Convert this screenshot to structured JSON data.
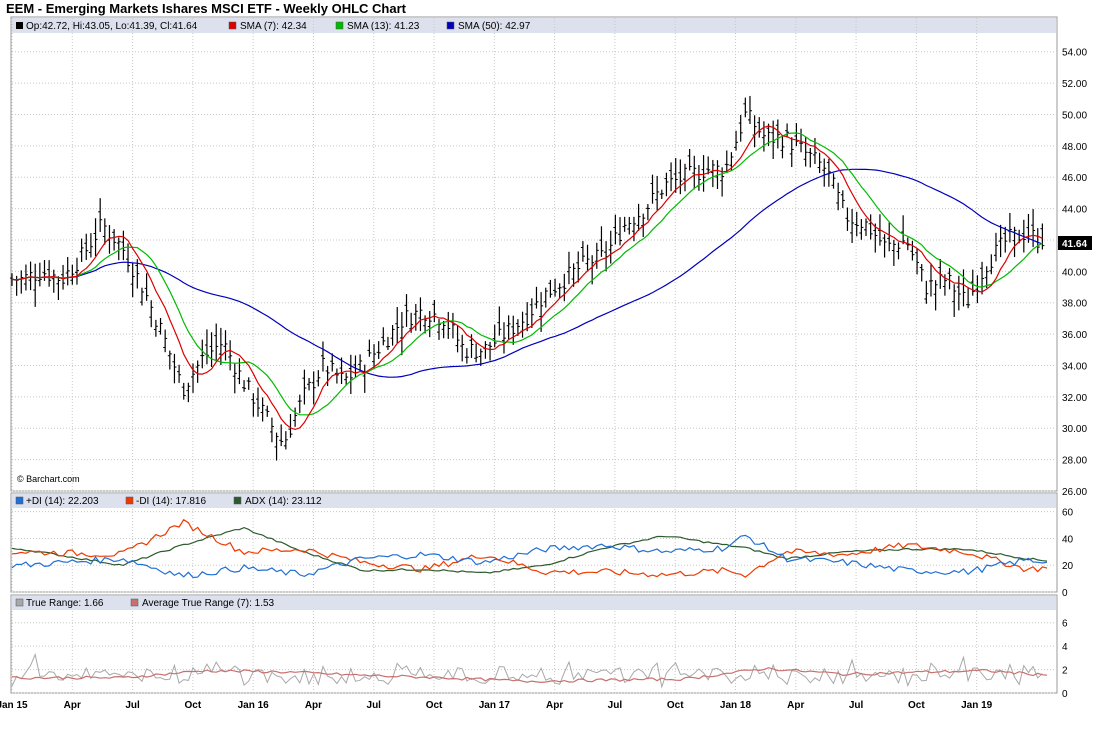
{
  "title": "EEM - Emerging Markets Ishares MSCI ETF - Weekly OHLC Chart",
  "credit": "© Barchart.com",
  "colors": {
    "sma7": "#dd0000",
    "sma13": "#00bb00",
    "sma50": "#0000bb",
    "plus_di": "#1f6fd6",
    "minus_di": "#ee3a00",
    "adx": "#2d5a2d",
    "true_range": "#a8a8a8",
    "atr": "#c87070",
    "panel_border": "#9a9a9a",
    "legend_bg": "#dde1ee"
  },
  "panels": {
    "price": {
      "legend": [
        {
          "label": "Op:42.72, Hi:43.05, Lo:41.39, Cl:41.64",
          "color": "#000000"
        },
        {
          "label": "SMA (7): 42.34",
          "color": "#dd0000"
        },
        {
          "label": "SMA (13): 41.23",
          "color": "#00bb00"
        },
        {
          "label": "SMA (50): 42.97",
          "color": "#0000bb"
        }
      ],
      "y_ticks": [
        "26.00",
        "28.00",
        "30.00",
        "32.00",
        "34.00",
        "36.00",
        "38.00",
        "40.00",
        "42.00",
        "44.00",
        "46.00",
        "48.00",
        "50.00",
        "52.00",
        "54.00"
      ],
      "last_value": "41.64"
    },
    "dmi": {
      "legend": [
        {
          "label": "+DI (14): 22.203",
          "color": "#1f6fd6"
        },
        {
          "label": "-DI (14): 17.816",
          "color": "#ee3a00"
        },
        {
          "label": "ADX (14): 23.112",
          "color": "#2d5a2d"
        }
      ],
      "y_ticks": [
        "0",
        "20",
        "40",
        "60"
      ]
    },
    "atr": {
      "legend": [
        {
          "label": "True Range: 1.66",
          "color": "#a8a8a8"
        },
        {
          "label": "Average True Range (7): 1.53",
          "color": "#c87070"
        }
      ],
      "y_ticks": [
        "0",
        "2",
        "4",
        "6"
      ]
    }
  },
  "x_ticks": [
    "Jan 15",
    "Apr",
    "Jul",
    "Oct",
    "Jan 16",
    "Apr",
    "Jul",
    "Oct",
    "Jan 17",
    "Apr",
    "Jul",
    "Oct",
    "Jan 18",
    "Apr",
    "Jul",
    "Oct",
    "Jan 19"
  ],
  "chart_data": {
    "type": "ohlc",
    "interval": "weekly",
    "x": {
      "start": "2015-01",
      "end": "2019-04",
      "tick_labels": [
        "Jan 15",
        "Apr",
        "Jul",
        "Oct",
        "Jan 16",
        "Apr",
        "Jul",
        "Oct",
        "Jan 17",
        "Apr",
        "Jul",
        "Oct",
        "Jan 18",
        "Apr",
        "Jul",
        "Oct",
        "Jan 19"
      ]
    },
    "price": {
      "ylim": [
        26,
        55
      ],
      "close_path": [
        [
          "2015-01",
          39.5
        ],
        [
          "2015-02",
          40.0
        ],
        [
          "2015-03",
          39.5
        ],
        [
          "2015-04",
          41.0
        ],
        [
          "2015-05",
          43.0
        ],
        [
          "2015-06",
          41.5
        ],
        [
          "2015-07",
          39.0
        ],
        [
          "2015-08",
          36.0
        ],
        [
          "2015-09",
          32.5
        ],
        [
          "2015-10",
          34.5
        ],
        [
          "2015-11",
          35.5
        ],
        [
          "2015-12",
          33.0
        ],
        [
          "2016-01",
          31.0
        ],
        [
          "2016-02",
          29.0
        ],
        [
          "2016-03",
          32.0
        ],
        [
          "2016-04",
          34.0
        ],
        [
          "2016-05",
          33.0
        ],
        [
          "2016-06",
          34.0
        ],
        [
          "2016-07",
          35.5
        ],
        [
          "2016-08",
          37.0
        ],
        [
          "2016-09",
          37.5
        ],
        [
          "2016-10",
          37.0
        ],
        [
          "2016-11",
          35.0
        ],
        [
          "2016-12",
          35.0
        ],
        [
          "2017-01",
          36.0
        ],
        [
          "2017-02",
          37.0
        ],
        [
          "2017-03",
          38.5
        ],
        [
          "2017-04",
          39.5
        ],
        [
          "2017-05",
          40.5
        ],
        [
          "2017-06",
          41.0
        ],
        [
          "2017-07",
          43.0
        ],
        [
          "2017-08",
          44.0
        ],
        [
          "2017-09",
          45.5
        ],
        [
          "2017-10",
          46.0
        ],
        [
          "2017-11",
          46.5
        ],
        [
          "2017-12",
          46.5
        ],
        [
          "2018-01",
          50.0
        ],
        [
          "2018-02",
          48.5
        ],
        [
          "2018-03",
          48.5
        ],
        [
          "2018-04",
          47.5
        ],
        [
          "2018-05",
          46.5
        ],
        [
          "2018-06",
          43.5
        ],
        [
          "2018-07",
          43.0
        ],
        [
          "2018-08",
          41.5
        ],
        [
          "2018-09",
          42.0
        ],
        [
          "2018-10",
          39.0
        ],
        [
          "2018-11",
          39.5
        ],
        [
          "2018-12",
          38.0
        ],
        [
          "2019-01",
          40.5
        ],
        [
          "2019-02",
          42.0
        ],
        [
          "2019-03",
          42.5
        ],
        [
          "2019-04",
          41.64
        ]
      ],
      "last": {
        "open": 42.72,
        "high": 43.05,
        "low": 41.39,
        "close": 41.64
      },
      "sma7_last": 42.34,
      "sma13_last": 41.23,
      "sma50_last": 42.97
    },
    "dmi": {
      "ylim": [
        0,
        62
      ],
      "plus_di_path": [
        [
          "2015-01",
          20
        ],
        [
          "2015-06",
          25
        ],
        [
          "2015-09",
          12
        ],
        [
          "2015-12",
          18
        ],
        [
          "2016-03",
          13
        ],
        [
          "2016-06",
          25
        ],
        [
          "2016-09",
          28
        ],
        [
          "2016-12",
          22
        ],
        [
          "2017-03",
          32
        ],
        [
          "2017-06",
          35
        ],
        [
          "2017-09",
          30
        ],
        [
          "2017-12",
          33
        ],
        [
          "2018-01",
          42
        ],
        [
          "2018-03",
          25
        ],
        [
          "2018-06",
          22
        ],
        [
          "2018-09",
          16
        ],
        [
          "2018-12",
          15
        ],
        [
          "2019-03",
          24
        ],
        [
          "2019-04",
          22.203
        ]
      ],
      "minus_di_path": [
        [
          "2015-01",
          30
        ],
        [
          "2015-06",
          28
        ],
        [
          "2015-09",
          52
        ],
        [
          "2015-12",
          30
        ],
        [
          "2016-03",
          32
        ],
        [
          "2016-06",
          22
        ],
        [
          "2016-09",
          17
        ],
        [
          "2016-12",
          28
        ],
        [
          "2017-03",
          15
        ],
        [
          "2017-06",
          15
        ],
        [
          "2017-09",
          13
        ],
        [
          "2017-12",
          16
        ],
        [
          "2018-01",
          13
        ],
        [
          "2018-03",
          30
        ],
        [
          "2018-06",
          28
        ],
        [
          "2018-09",
          35
        ],
        [
          "2018-12",
          30
        ],
        [
          "2019-03",
          17
        ],
        [
          "2019-04",
          17.816
        ]
      ],
      "adx_path": [
        [
          "2015-01",
          32
        ],
        [
          "2015-06",
          20
        ],
        [
          "2015-09",
          35
        ],
        [
          "2015-12",
          48
        ],
        [
          "2016-03",
          30
        ],
        [
          "2016-06",
          16
        ],
        [
          "2016-09",
          17
        ],
        [
          "2016-12",
          14
        ],
        [
          "2017-03",
          20
        ],
        [
          "2017-06",
          33
        ],
        [
          "2017-09",
          42
        ],
        [
          "2017-12",
          35
        ],
        [
          "2018-01",
          33
        ],
        [
          "2018-03",
          25
        ],
        [
          "2018-06",
          30
        ],
        [
          "2018-09",
          32
        ],
        [
          "2018-12",
          32
        ],
        [
          "2019-03",
          25
        ],
        [
          "2019-04",
          23.112
        ]
      ],
      "last": {
        "plus_di": 22.203,
        "minus_di": 17.816,
        "adx": 23.112
      }
    },
    "atr": {
      "ylim": [
        0,
        7
      ],
      "atr_path": [
        [
          "2015-01",
          1.3
        ],
        [
          "2015-06",
          1.3
        ],
        [
          "2015-10",
          1.9
        ],
        [
          "2016-02",
          1.8
        ],
        [
          "2016-06",
          1.5
        ],
        [
          "2016-10",
          1.3
        ],
        [
          "2017-02",
          1.0
        ],
        [
          "2017-06",
          1.1
        ],
        [
          "2017-10",
          1.2
        ],
        [
          "2018-02",
          2.1
        ],
        [
          "2018-06",
          1.6
        ],
        [
          "2018-10",
          1.8
        ],
        [
          "2019-01",
          1.9
        ],
        [
          "2019-04",
          1.53
        ]
      ],
      "last": {
        "true_range": 1.66,
        "atr7": 1.53
      }
    }
  }
}
